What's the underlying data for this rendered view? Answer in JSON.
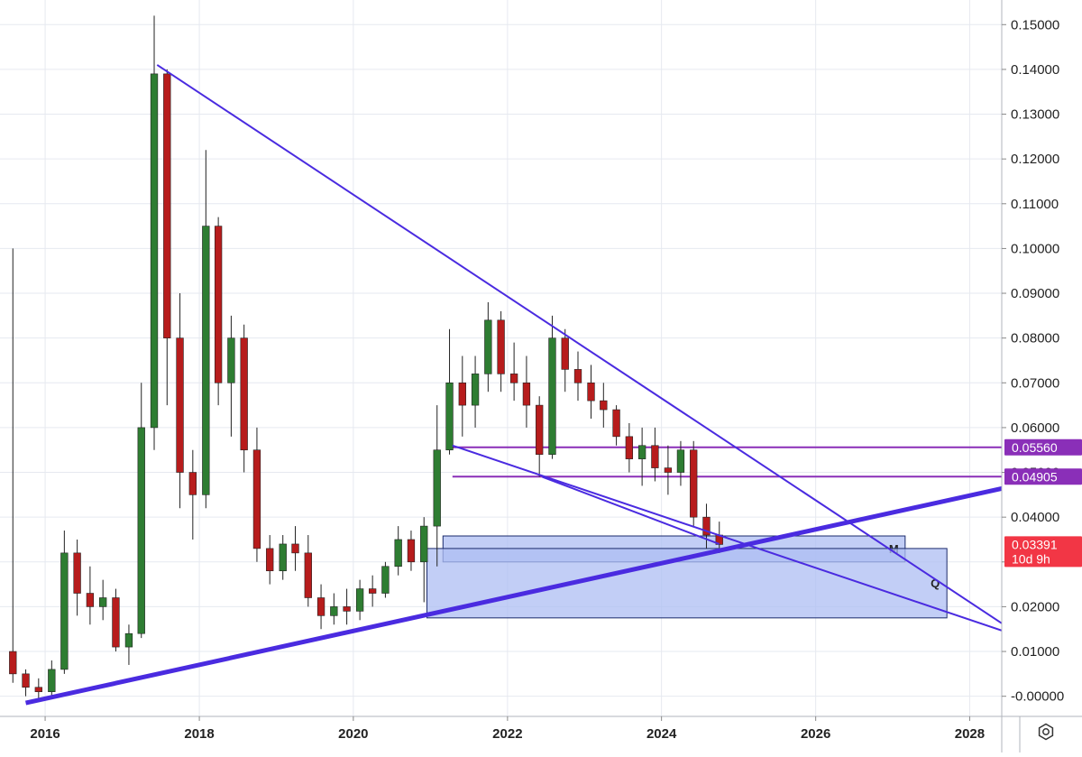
{
  "chart_data": {
    "type": "candlestick",
    "x_axis": {
      "type": "time",
      "xlim": [
        "2015-06-01",
        "2028-06-01"
      ],
      "ticks": [
        "2016",
        "2018",
        "2020",
        "2022",
        "2024",
        "2026",
        "2028"
      ]
    },
    "y_axis": {
      "position": "right",
      "ylim": [
        -0.0045,
        0.1555
      ],
      "ticks": [
        "0.15000",
        "0.14000",
        "0.13000",
        "0.12000",
        "0.11000",
        "0.10000",
        "0.09000",
        "0.08000",
        "0.07000",
        "0.06000",
        "0.05000",
        "0.04000",
        "0.03000",
        "0.02000",
        "0.01000",
        "-0.00000"
      ]
    },
    "grid": true,
    "colors": {
      "up": "#2e7d32",
      "down": "#b71c1c",
      "trendline": "#4a2be0",
      "level": "#8a2fb8",
      "zone_fill": "#aebdf3",
      "price_tag": "#f23645"
    },
    "series": [
      {
        "type": "candles",
        "values": [
          [
            "2015-08-01",
            0.01,
            0.1,
            0.003,
            0.005
          ],
          [
            "2015-10-01",
            0.005,
            0.006,
            0.0,
            0.002
          ],
          [
            "2015-12-01",
            0.002,
            0.004,
            -0.001,
            0.001
          ],
          [
            "2016-02-01",
            0.001,
            0.008,
            0.0,
            0.006
          ],
          [
            "2016-04-01",
            0.006,
            0.037,
            0.005,
            0.032
          ],
          [
            "2016-06-01",
            0.032,
            0.035,
            0.018,
            0.023
          ],
          [
            "2016-08-01",
            0.023,
            0.029,
            0.016,
            0.02
          ],
          [
            "2016-10-01",
            0.02,
            0.026,
            0.017,
            0.022
          ],
          [
            "2016-12-01",
            0.022,
            0.024,
            0.01,
            0.011
          ],
          [
            "2017-02-01",
            0.011,
            0.016,
            0.007,
            0.014
          ],
          [
            "2017-04-01",
            0.014,
            0.07,
            0.013,
            0.06
          ],
          [
            "2017-06-01",
            0.06,
            0.152,
            0.055,
            0.139
          ],
          [
            "2017-08-01",
            0.139,
            0.14,
            0.065,
            0.08
          ],
          [
            "2017-10-01",
            0.08,
            0.09,
            0.042,
            0.05
          ],
          [
            "2017-12-01",
            0.05,
            0.055,
            0.035,
            0.045
          ],
          [
            "2018-02-01",
            0.045,
            0.122,
            0.042,
            0.105
          ],
          [
            "2018-04-01",
            0.105,
            0.107,
            0.065,
            0.07
          ],
          [
            "2018-06-01",
            0.07,
            0.085,
            0.058,
            0.08
          ],
          [
            "2018-08-01",
            0.08,
            0.083,
            0.05,
            0.055
          ],
          [
            "2018-10-01",
            0.055,
            0.06,
            0.03,
            0.033
          ],
          [
            "2018-12-01",
            0.033,
            0.036,
            0.025,
            0.028
          ],
          [
            "2019-02-01",
            0.028,
            0.036,
            0.026,
            0.034
          ],
          [
            "2019-04-01",
            0.034,
            0.038,
            0.028,
            0.032
          ],
          [
            "2019-06-01",
            0.032,
            0.036,
            0.02,
            0.022
          ],
          [
            "2019-08-01",
            0.022,
            0.025,
            0.015,
            0.018
          ],
          [
            "2019-10-01",
            0.018,
            0.023,
            0.016,
            0.02
          ],
          [
            "2019-12-01",
            0.02,
            0.024,
            0.016,
            0.019
          ],
          [
            "2020-02-01",
            0.019,
            0.026,
            0.017,
            0.024
          ],
          [
            "2020-04-01",
            0.024,
            0.027,
            0.02,
            0.023
          ],
          [
            "2020-06-01",
            0.023,
            0.03,
            0.022,
            0.029
          ],
          [
            "2020-08-01",
            0.029,
            0.038,
            0.027,
            0.035
          ],
          [
            "2020-10-01",
            0.035,
            0.037,
            0.028,
            0.03
          ],
          [
            "2020-12-01",
            0.03,
            0.04,
            0.021,
            0.038
          ],
          [
            "2021-02-01",
            0.038,
            0.065,
            0.029,
            0.055
          ],
          [
            "2021-04-01",
            0.055,
            0.082,
            0.054,
            0.07
          ],
          [
            "2021-06-01",
            0.07,
            0.076,
            0.058,
            0.065
          ],
          [
            "2021-08-01",
            0.065,
            0.076,
            0.06,
            0.072
          ],
          [
            "2021-10-01",
            0.072,
            0.088,
            0.068,
            0.084
          ],
          [
            "2021-12-01",
            0.084,
            0.086,
            0.068,
            0.072
          ],
          [
            "2022-02-01",
            0.072,
            0.079,
            0.066,
            0.07
          ],
          [
            "2022-04-01",
            0.07,
            0.076,
            0.06,
            0.065
          ],
          [
            "2022-06-01",
            0.065,
            0.067,
            0.049,
            0.054
          ],
          [
            "2022-08-01",
            0.054,
            0.085,
            0.053,
            0.08
          ],
          [
            "2022-10-01",
            0.08,
            0.082,
            0.068,
            0.073
          ],
          [
            "2022-12-01",
            0.073,
            0.077,
            0.066,
            0.07
          ],
          [
            "2023-02-01",
            0.07,
            0.074,
            0.062,
            0.066
          ],
          [
            "2023-04-01",
            0.066,
            0.07,
            0.06,
            0.064
          ],
          [
            "2023-06-01",
            0.064,
            0.065,
            0.056,
            0.058
          ],
          [
            "2023-08-01",
            0.058,
            0.061,
            0.05,
            0.053
          ],
          [
            "2023-10-01",
            0.053,
            0.06,
            0.047,
            0.056
          ],
          [
            "2023-12-01",
            0.056,
            0.06,
            0.048,
            0.051
          ],
          [
            "2024-02-01",
            0.051,
            0.056,
            0.045,
            0.05
          ],
          [
            "2024-04-01",
            0.05,
            0.057,
            0.047,
            0.055
          ],
          [
            "2024-06-01",
            0.055,
            0.057,
            0.038,
            0.04
          ],
          [
            "2024-08-01",
            0.04,
            0.043,
            0.033,
            0.036
          ],
          [
            "2024-10-01",
            0.036,
            0.039,
            0.032,
            0.0339
          ]
        ]
      },
      {
        "type": "trendline",
        "points": [
          [
            "2017-06-15",
            0.141
          ],
          [
            "2028-09-15",
            0.013
          ]
        ]
      },
      {
        "type": "trendline",
        "points": [
          [
            "2021-04-15",
            0.056
          ],
          [
            "2028-09-15",
            0.013
          ]
        ]
      },
      {
        "type": "trendline",
        "points": [
          [
            "2022-06-15",
            0.049
          ],
          [
            "2024-10-01",
            0.034
          ]
        ]
      },
      {
        "type": "trendline",
        "bold": true,
        "points": [
          [
            "2015-10-01",
            -0.0015
          ],
          [
            "2028-09-15",
            0.0475
          ]
        ]
      }
    ],
    "levels": [
      {
        "value": 0.0556,
        "label": "0.05560"
      },
      {
        "value": 0.04905,
        "label": "0.04905"
      }
    ],
    "zones": [
      {
        "label": "M",
        "x": [
          "2021-03-01",
          "2027-03-01"
        ],
        "y": [
          0.03,
          0.0358
        ]
      },
      {
        "label": "Q",
        "x": [
          "2020-12-15",
          "2027-09-15"
        ],
        "y": [
          0.0175,
          0.033
        ]
      }
    ],
    "price_tag": {
      "value": 0.03391,
      "label": "0.03391",
      "countdown": "10d 9h"
    }
  }
}
